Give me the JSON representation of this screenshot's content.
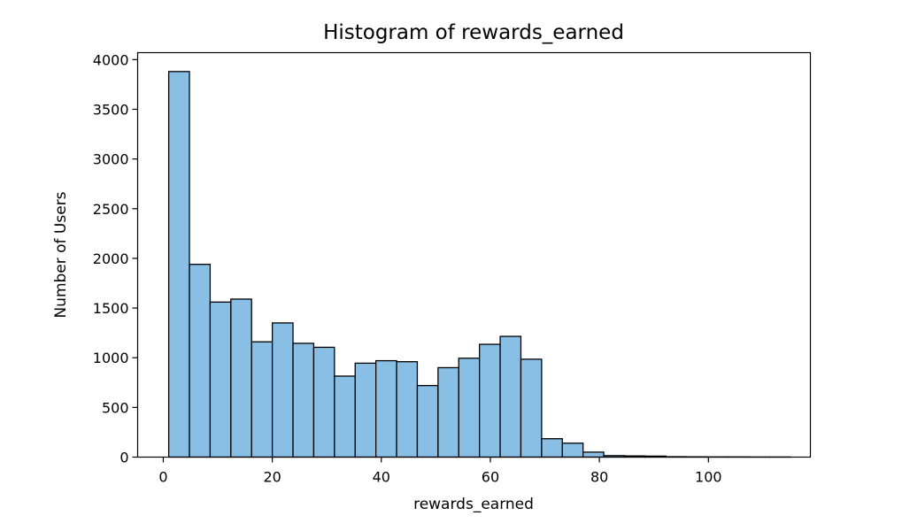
{
  "chart_data": {
    "type": "bar",
    "title": "Histogram of rewards_earned",
    "xlabel": "rewards_earned",
    "ylabel": "Number of Users",
    "xlim": [
      -4.7,
      118.7
    ],
    "ylim": [
      0,
      4070
    ],
    "xticks": [
      0,
      20,
      40,
      60,
      80,
      100
    ],
    "yticks": [
      0,
      500,
      1000,
      1500,
      2000,
      2500,
      3000,
      3500,
      4000
    ],
    "bin_edges": [
      1.0,
      4.8,
      8.6,
      12.4,
      16.2,
      20.0,
      23.8,
      27.6,
      31.4,
      35.2,
      39.0,
      42.8,
      46.6,
      50.4,
      54.2,
      58.0,
      61.8,
      65.6,
      69.4,
      73.2,
      77.0,
      80.8,
      84.6,
      88.4,
      92.2,
      96.0,
      99.8,
      103.6,
      107.4,
      111.2,
      115.0
    ],
    "values": [
      3880,
      1940,
      1560,
      1590,
      1160,
      1350,
      1145,
      1105,
      815,
      945,
      970,
      960,
      720,
      900,
      995,
      1135,
      1215,
      985,
      185,
      140,
      50,
      15,
      12,
      10,
      4,
      3,
      2,
      2,
      1,
      1
    ],
    "bar_color": "#89bfe5",
    "edge_color": "#000000",
    "grid": false,
    "legend": false
  }
}
